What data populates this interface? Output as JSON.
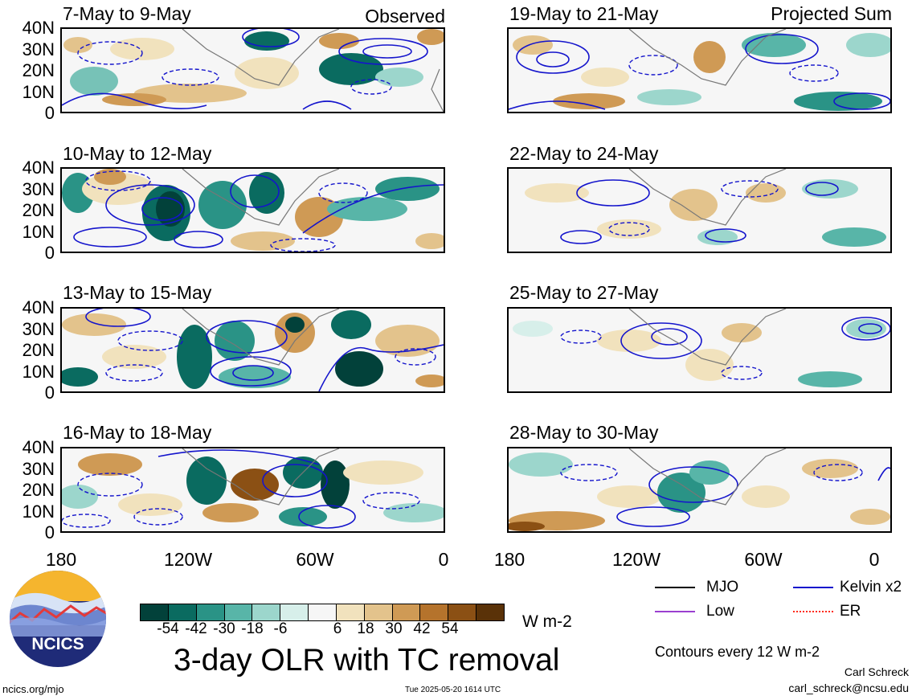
{
  "map": {
    "panels_observed": [
      {
        "title": "7-May to 9-May",
        "corner": "Observed"
      },
      {
        "title": "10-May to 12-May",
        "corner": ""
      },
      {
        "title": "13-May to 15-May",
        "corner": ""
      },
      {
        "title": "16-May to 18-May",
        "corner": ""
      }
    ],
    "panels_projected": [
      {
        "title": "19-May to 21-May",
        "corner": "Projected Sum"
      },
      {
        "title": "22-May to 24-May",
        "corner": ""
      },
      {
        "title": "25-May to 27-May",
        "corner": ""
      },
      {
        "title": "28-May to 30-May",
        "corner": ""
      }
    ],
    "lat_labels": [
      "40N",
      "30N",
      "20N",
      "10N",
      "0"
    ],
    "lon_labels": [
      "180",
      "120W",
      "60W",
      "0"
    ]
  },
  "colorbar": {
    "ticks": [
      "-54",
      "-42",
      "-30",
      "-18",
      "-6",
      "6",
      "18",
      "30",
      "42",
      "54"
    ],
    "colors": [
      "#02413a",
      "#0a6b60",
      "#2a9386",
      "#58b5a8",
      "#9cd6cc",
      "#d7efea",
      "#f6f6f6",
      "#f1e2bd",
      "#e3c38c",
      "#cf9a55",
      "#b5732c",
      "#8b5014",
      "#5a3208"
    ],
    "units": "W m-2"
  },
  "legend": {
    "items": [
      {
        "label": "MJO",
        "color": "#000000",
        "dashed": false
      },
      {
        "label": "Kelvin x2",
        "color": "#1414cc",
        "dashed": false
      },
      {
        "label": "Low",
        "color": "#9b3fd0",
        "dashed": false
      },
      {
        "label": "ER",
        "color": "#ff2a1a",
        "dashed": true
      }
    ],
    "contour_note": "Contours every 12 W m-2"
  },
  "title": "3-day OLR with TC removal",
  "logo": {
    "text": "NCICS"
  },
  "footer": {
    "url": "ncics.org/mjo",
    "timestamp": "Tue 2025-05-20 1614 UTC",
    "author": "Carl Schreck",
    "email": "carl_schreck@ncsu.edu"
  }
}
